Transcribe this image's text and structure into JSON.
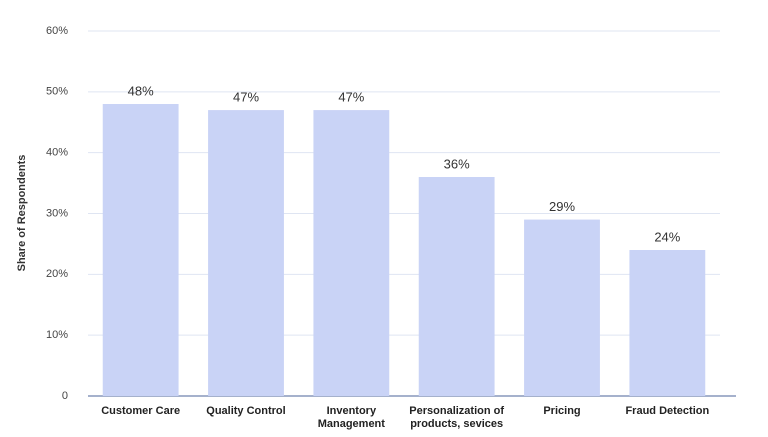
{
  "chart_data": {
    "type": "bar",
    "y_label": "Share of Respondents",
    "categories": [
      "Customer Care",
      "Quality Control",
      "Inventory Management",
      "Personalization of products, sevices",
      "Pricing",
      "Fraud Detection"
    ],
    "values": [
      48,
      47,
      47,
      36,
      29,
      24
    ],
    "value_labels": [
      "48%",
      "47%",
      "47%",
      "36%",
      "29%",
      "24%"
    ],
    "color": "#c9d3f6",
    "ylim": [
      0,
      60
    ],
    "yticks": [
      0,
      {
        "value": 10,
        "label": "10%"
      },
      {
        "value": 20,
        "label": "20%"
      },
      {
        "value": 30,
        "label": "30%"
      },
      {
        "value": 40,
        "label": "40%"
      },
      {
        "value": 50,
        "label": "50%"
      },
      {
        "value": 60,
        "label": "60%"
      }
    ],
    "grid": true
  }
}
